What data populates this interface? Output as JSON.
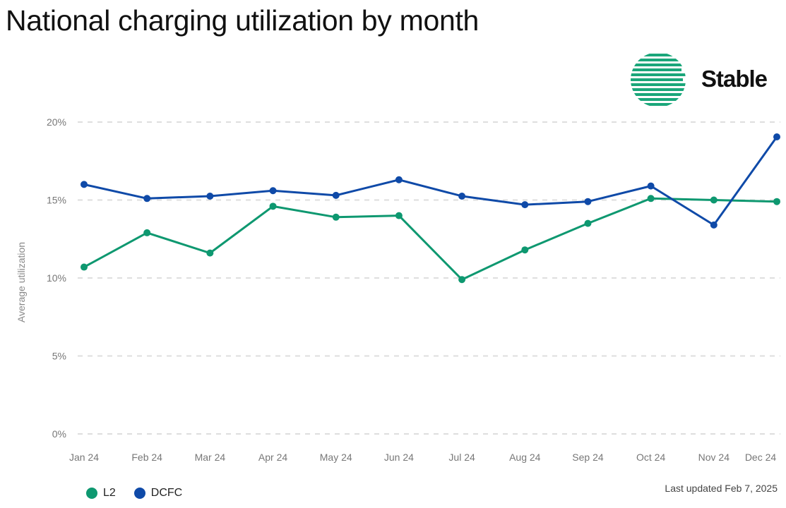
{
  "title": "National charging utilization by month",
  "brand": {
    "name": "Stable",
    "color": "#1aa67a"
  },
  "footer": {
    "last_updated": "Last updated Feb 7, 2025"
  },
  "chart_data": {
    "type": "line",
    "title": "National charging utilization by month",
    "ylabel": "Average utilization",
    "xlabel": "",
    "categories": [
      "Jan 24",
      "Feb 24",
      "Mar 24",
      "Apr 24",
      "May 24",
      "Jun 24",
      "Jul 24",
      "Aug 24",
      "Sep 24",
      "Oct 24",
      "Nov 24",
      "Dec 24"
    ],
    "yticks": [
      "0%",
      "5%",
      "10%",
      "15%",
      "20%"
    ],
    "ylim": [
      0,
      20
    ],
    "grid": true,
    "legend": "bottom-left",
    "series": [
      {
        "name": "L2",
        "color": "#0e9870",
        "values": [
          10.7,
          12.9,
          11.6,
          14.6,
          13.9,
          14.0,
          9.9,
          11.8,
          13.5,
          15.1,
          15.0,
          14.9
        ]
      },
      {
        "name": "DCFC",
        "color": "#0f4aa8",
        "values": [
          16.0,
          15.1,
          15.25,
          15.6,
          15.3,
          16.3,
          15.25,
          14.7,
          14.9,
          15.9,
          13.4,
          19.05
        ]
      }
    ]
  }
}
